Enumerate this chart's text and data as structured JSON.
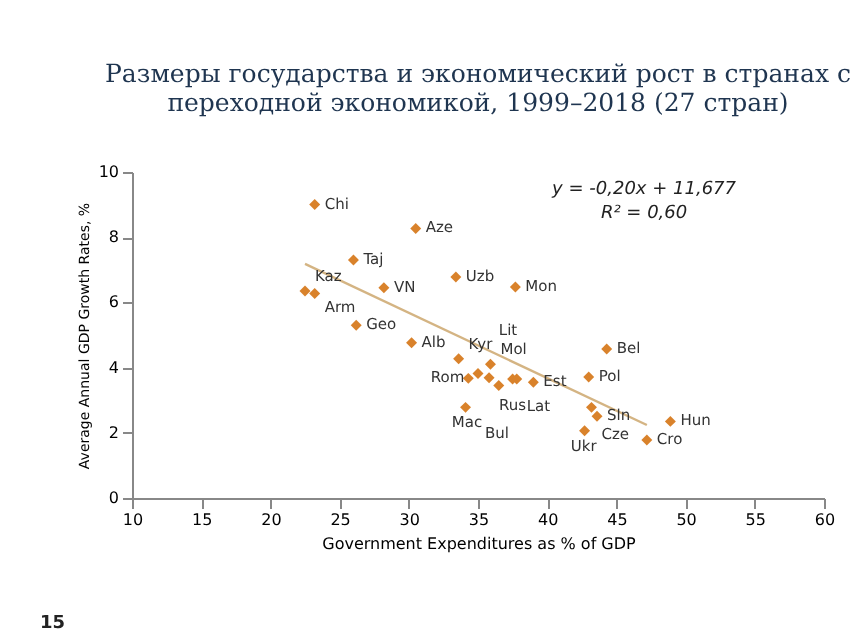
{
  "chart_data": {
    "type": "scatter",
    "title": [
      "Размеры государства и экономический рост в странах с",
      "переходной экономикой, 1999–2018 (27 стран)"
    ],
    "xlabel": "Government Expenditures as % of GDP",
    "ylabel": "Average Annual GDP Growth Rates, %",
    "xlim": [
      10,
      60
    ],
    "xticks": [
      10,
      15,
      20,
      25,
      30,
      35,
      40,
      45,
      50,
      55,
      60
    ],
    "ylim": [
      0,
      10
    ],
    "yticks": [
      0,
      2,
      4,
      6,
      8,
      10
    ],
    "grid": false,
    "marker": "diamond",
    "series": [
      {
        "color": "#d9822b",
        "x": [
          23.2,
          26.0,
          22.5,
          23.2,
          28.2,
          26.2,
          30.5,
          33.4,
          37.7,
          30.2,
          33.6,
          35.9,
          34.3,
          35.0,
          35.8,
          36.5,
          37.5,
          37.8,
          39.0,
          34.1,
          44.3,
          43.0,
          43.2,
          43.6,
          42.7,
          48.9,
          47.2
        ],
        "values": [
          9.0,
          7.3,
          6.35,
          6.27,
          6.45,
          5.3,
          8.27,
          6.78,
          6.47,
          4.76,
          4.27,
          4.1,
          3.67,
          3.82,
          3.69,
          3.45,
          3.65,
          3.65,
          3.55,
          2.78,
          4.57,
          3.71,
          2.78,
          2.51,
          2.06,
          2.35,
          1.78
        ]
      },
      {
        "type": "line",
        "marker": "none",
        "line_style": "solid",
        "color": "#d4b483",
        "x": [
          22.5,
          47.2
        ],
        "values": [
          7.18,
          2.24
        ]
      }
    ],
    "annotations": [
      "y = -0,20x + 11,677",
      "R² = 0,60",
      "15",
      {
        "text": "Chi",
        "x": 23.2,
        "y": 9.0
      },
      {
        "text": "Taj",
        "x": 26.0,
        "y": 7.3
      },
      {
        "text": "Kaz",
        "x": 22.5,
        "y": 6.35
      },
      {
        "text": "Arm",
        "x": 23.2,
        "y": 6.27
      },
      {
        "text": "VN",
        "x": 28.2,
        "y": 6.45
      },
      {
        "text": "Geo",
        "x": 26.2,
        "y": 5.3
      },
      {
        "text": "Aze",
        "x": 30.5,
        "y": 8.27
      },
      {
        "text": "Uzb",
        "x": 33.4,
        "y": 6.78
      },
      {
        "text": "Mon",
        "x": 37.7,
        "y": 6.47
      },
      {
        "text": "Alb",
        "x": 30.2,
        "y": 4.76
      },
      {
        "text": "Kyr",
        "x": 33.6,
        "y": 4.27
      },
      {
        "text": "Mol",
        "x": 35.9,
        "y": 4.1
      },
      {
        "text": "Rom",
        "x": 34.3,
        "y": 3.67
      },
      {
        "text": "Rus",
        "x": 35.8,
        "y": 3.69
      },
      {
        "text": "Bul",
        "x": 36.5,
        "y": 3.45
      },
      {
        "text": "Lit",
        "x": 37.5,
        "y": 3.65
      },
      {
        "text": "Lat",
        "x": 37.8,
        "y": 3.65
      },
      {
        "text": "Est",
        "x": 39.0,
        "y": 3.55
      },
      {
        "text": "Mac",
        "x": 34.1,
        "y": 2.78
      },
      {
        "text": "Bel",
        "x": 44.3,
        "y": 4.57
      },
      {
        "text": "Pol",
        "x": 43.0,
        "y": 3.71
      },
      {
        "text": "Cze",
        "x": 43.2,
        "y": 2.78
      },
      {
        "text": "Sln",
        "x": 43.6,
        "y": 2.51
      },
      {
        "text": "Ukr",
        "x": 42.7,
        "y": 2.06
      },
      {
        "text": "Hun",
        "x": 48.9,
        "y": 2.35
      },
      {
        "text": "Cro",
        "x": 47.2,
        "y": 1.78
      }
    ]
  }
}
